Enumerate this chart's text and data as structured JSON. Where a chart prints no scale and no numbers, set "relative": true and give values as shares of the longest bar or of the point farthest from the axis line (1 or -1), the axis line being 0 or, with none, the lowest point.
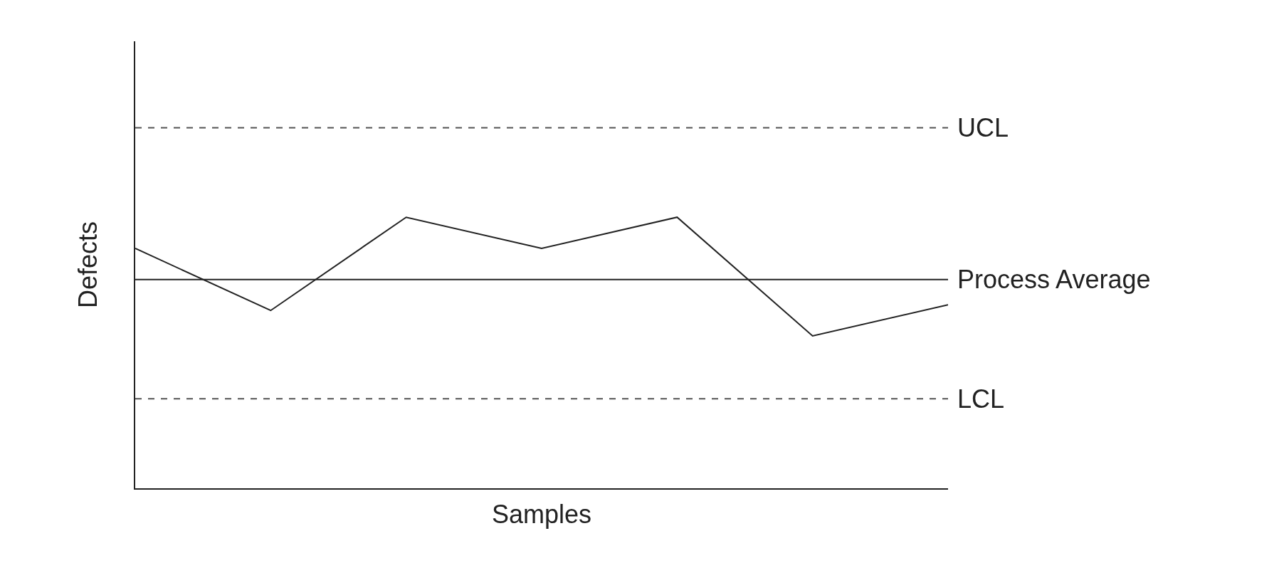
{
  "chart_data": {
    "type": "line",
    "relative": true,
    "xlabel": "Samples",
    "ylabel": "Defects",
    "categories": [
      null,
      null,
      null,
      null,
      null,
      null,
      null
    ],
    "series": [
      {
        "color": "#222222",
        "values": [
          0.885,
          0.656,
          1,
          0.885,
          1,
          0.562,
          0.677
        ]
      }
    ],
    "ref_lines": [
      {
        "axis": "y",
        "value": 1.33,
        "label": "UCL",
        "color": "#555555",
        "line_style": "dashed"
      },
      {
        "axis": "y",
        "value": 0.77,
        "label": "Process Average",
        "color": "#222222",
        "line_style": "solid"
      },
      {
        "axis": "y",
        "value": 0.33,
        "label": "LCL",
        "color": "#555555",
        "line_style": "dashed"
      }
    ],
    "marker": "none",
    "line_style": "solid",
    "grid": false
  }
}
